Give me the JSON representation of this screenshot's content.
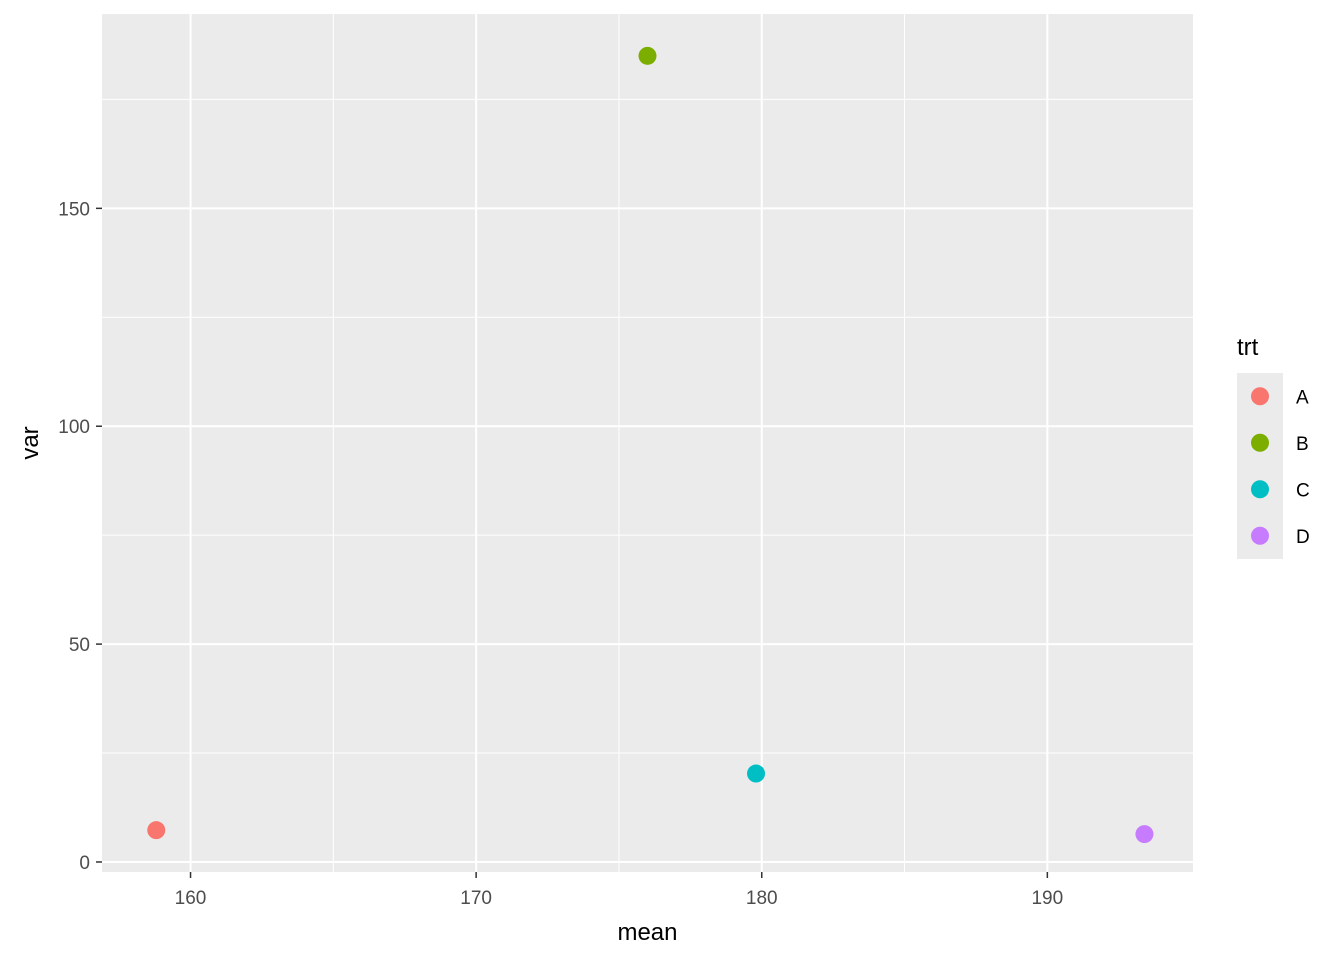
{
  "chart_data": {
    "type": "scatter",
    "title": "",
    "xlabel": "mean",
    "ylabel": "var",
    "xlim": [
      156.9,
      195.1
    ],
    "ylim": [
      -2.3,
      194.6
    ],
    "x_ticks": [
      160,
      170,
      180,
      190
    ],
    "x_tick_labels": [
      "160",
      "170",
      "180",
      "190"
    ],
    "y_ticks": [
      0,
      50,
      100,
      150
    ],
    "y_tick_labels": [
      "0",
      "50",
      "100",
      "150"
    ],
    "grid": true,
    "legend": {
      "title": "trt",
      "placement": "right",
      "entries": [
        {
          "label": "A",
          "color": "#F8766D"
        },
        {
          "label": "B",
          "color": "#7CAE00"
        },
        {
          "label": "C",
          "color": "#00BFC4"
        },
        {
          "label": "D",
          "color": "#C77CFF"
        }
      ]
    },
    "series": [
      {
        "name": "A",
        "color": "#F8766D",
        "points": [
          {
            "x": 158.8,
            "y": 7.3
          }
        ]
      },
      {
        "name": "B",
        "color": "#7CAE00",
        "points": [
          {
            "x": 176.0,
            "y": 185.0
          }
        ]
      },
      {
        "name": "C",
        "color": "#00BFC4",
        "points": [
          {
            "x": 179.8,
            "y": 20.3
          }
        ]
      },
      {
        "name": "D",
        "color": "#C77CFF",
        "points": [
          {
            "x": 193.4,
            "y": 6.4
          }
        ]
      }
    ]
  },
  "theme": {
    "panel_background": "#EBEBEB",
    "grid_major": "#FFFFFF",
    "tick_color": "#333333"
  }
}
